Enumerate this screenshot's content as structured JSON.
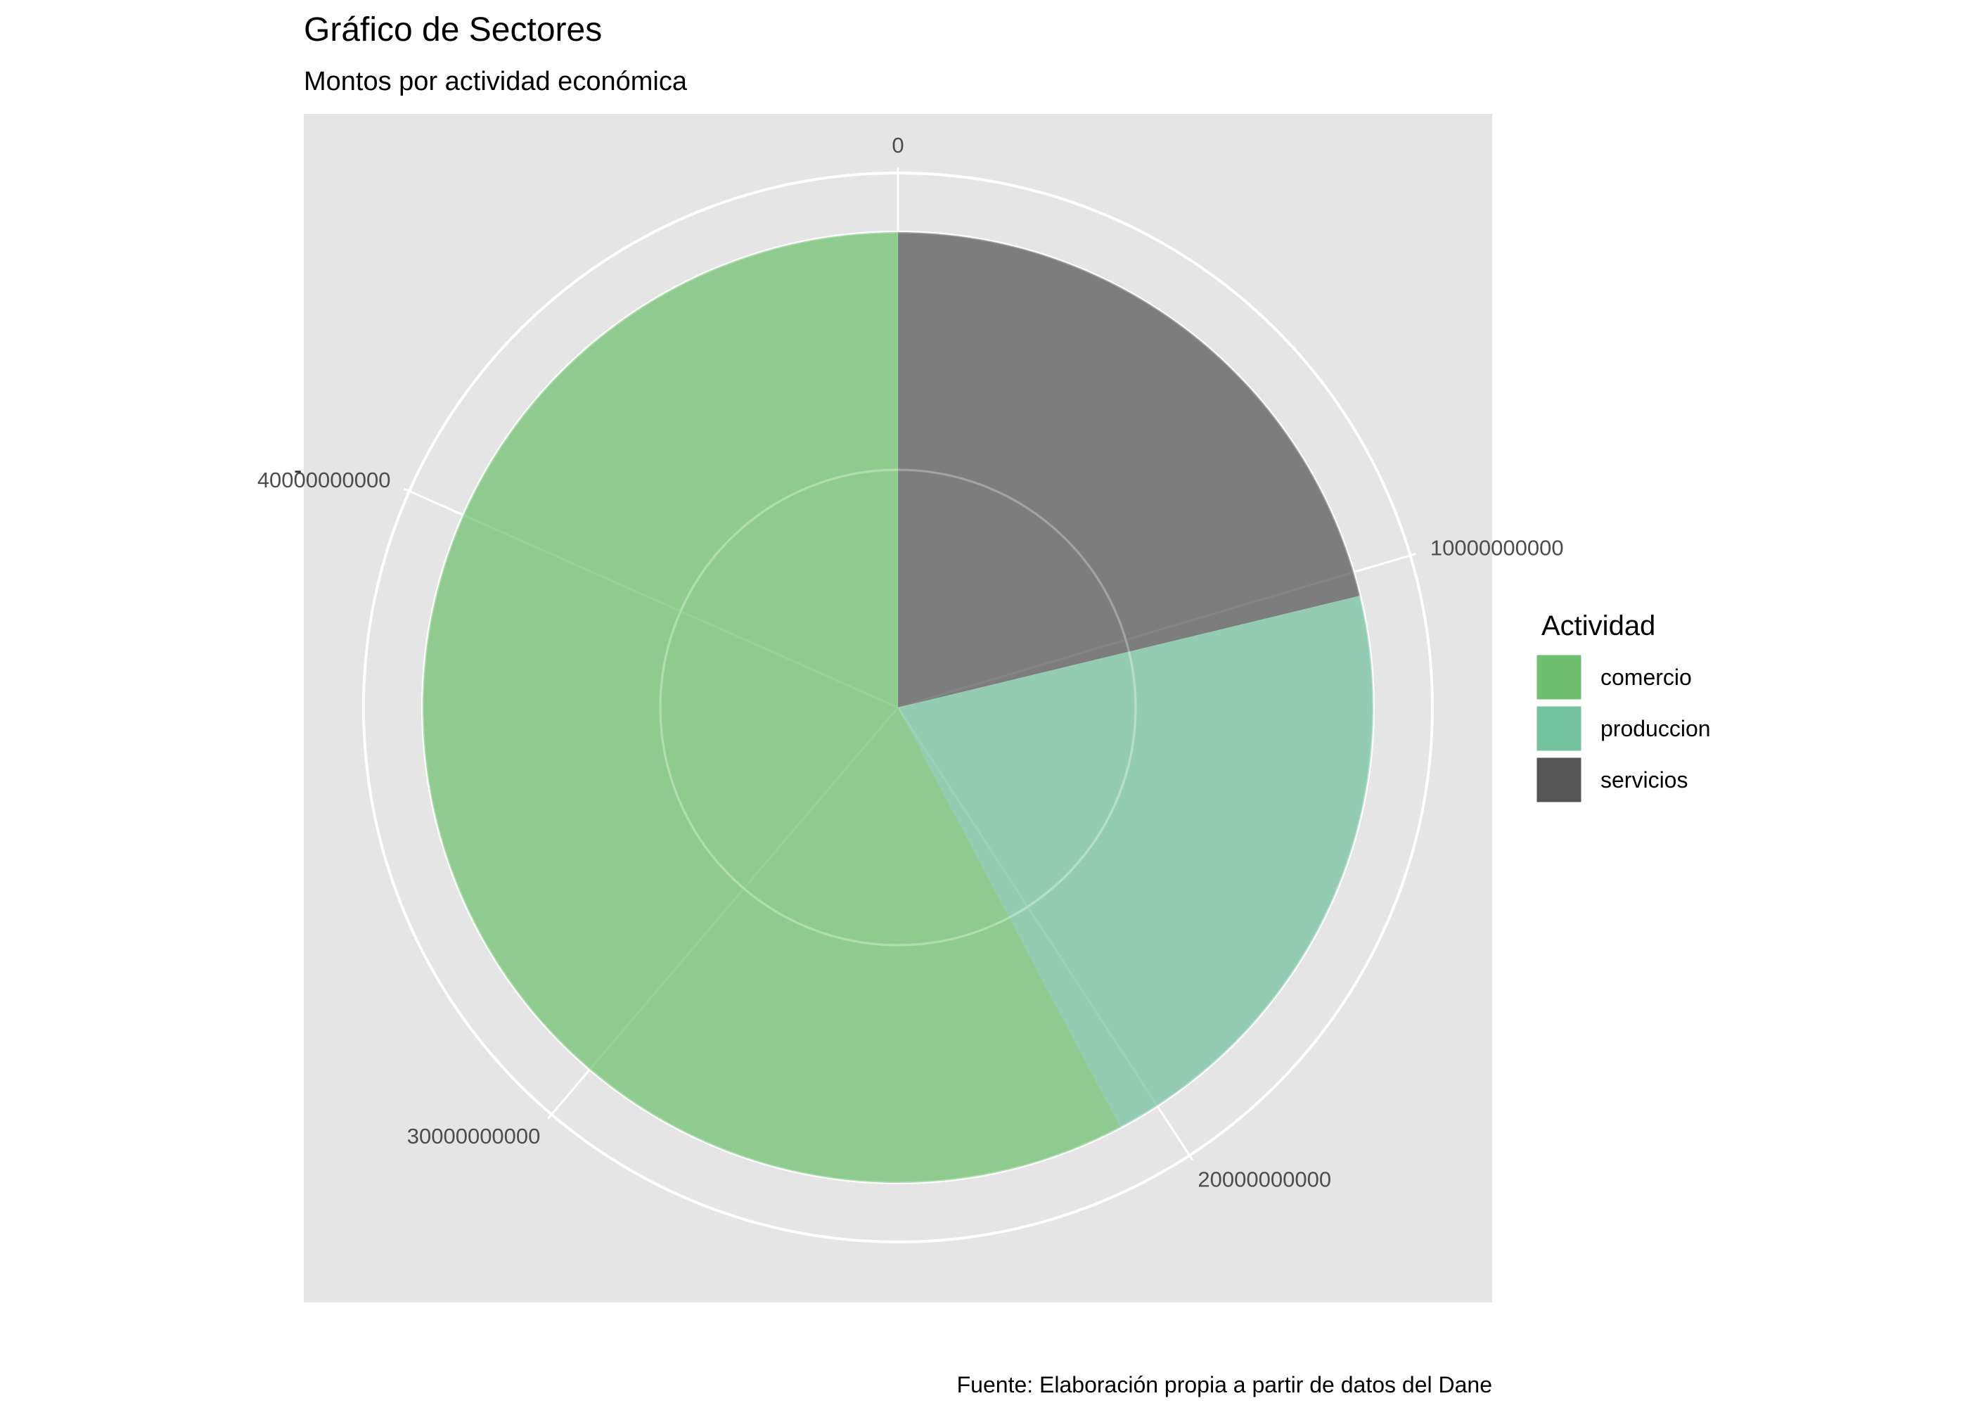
{
  "chart_data": {
    "type": "pie",
    "title": "Gráfico de Sectores",
    "subtitle": "Montos por actividad económica",
    "caption": "Fuente: Elaboración propia a partir de datos del Dane",
    "axis": {
      "range": [
        0,
        49000000000
      ],
      "ticks": [
        {
          "value": 0,
          "label": "0"
        },
        {
          "value": 10000000000,
          "label": "10000000000"
        },
        {
          "value": 20000000000,
          "label": "20000000000"
        },
        {
          "value": 30000000000,
          "label": "30000000000"
        },
        {
          "value": 40000000000,
          "label": "40000000000"
        }
      ],
      "grid": true
    },
    "slices": [
      {
        "category": "servicios",
        "value": 10400000000,
        "start": 0,
        "color": "#555555"
      },
      {
        "category": "produccion",
        "value": 10300000000,
        "start": 10400000000,
        "color": "#74c29f"
      },
      {
        "category": "comercio",
        "value": 28300000000,
        "start": 20700000000,
        "color": "#6ec06e"
      }
    ],
    "legend": {
      "title": "Actividad",
      "position": "right",
      "entries": [
        {
          "label": "comercio",
          "color": "#6ec06e"
        },
        {
          "label": "produccion",
          "color": "#74c29f"
        },
        {
          "label": "servicios",
          "color": "#555555"
        }
      ]
    },
    "panel_background": "#e5e5e5",
    "grid_color": "#ffffff",
    "y_axis_tick_mark": "-"
  }
}
